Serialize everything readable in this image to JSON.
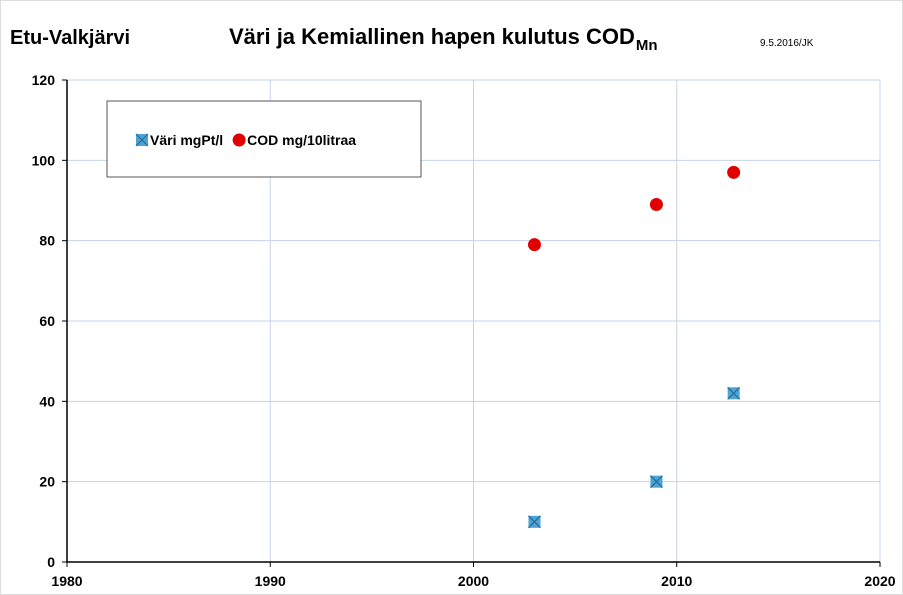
{
  "chart_data": {
    "type": "scatter",
    "site": "Etu-Valkjärvi",
    "title": "Väri ja Kemiallinen hapen kulutus COD",
    "title_subscript": "Mn",
    "date_note": "9.5.2016/JK",
    "x": [
      2003,
      2009,
      2012.8
    ],
    "series": [
      {
        "name": "Väri mgPt/l",
        "color": "#4ba3d6",
        "marker": "square",
        "values": [
          10,
          20,
          42
        ]
      },
      {
        "name": "COD mg/10litraa",
        "color": "#e00000",
        "marker": "circle",
        "values": [
          79,
          89,
          97
        ]
      }
    ],
    "xlim": [
      1980,
      2020
    ],
    "xticks": [
      1980,
      1990,
      2000,
      2010,
      2020
    ],
    "ylim": [
      0,
      120
    ],
    "yticks": [
      0,
      20,
      40,
      60,
      80,
      100,
      120
    ],
    "grid": true,
    "legend": "upper left"
  }
}
